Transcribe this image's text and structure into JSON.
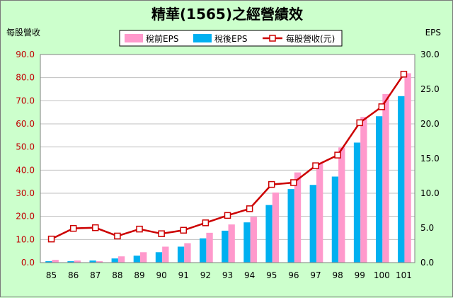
{
  "chart_data": {
    "type": "bar",
    "title": "精華(1565)之經營績效",
    "ylabel_left": "每股營收",
    "ylabel_right": "EPS",
    "categories": [
      "85",
      "86",
      "87",
      "88",
      "89",
      "90",
      "91",
      "92",
      "93",
      "94",
      "95",
      "96",
      "97",
      "98",
      "99",
      "100",
      "101"
    ],
    "series": [
      {
        "name": "稅前EPS",
        "type": "bar",
        "axis": "right",
        "color": "#ff99cc",
        "values": [
          0.4,
          0.3,
          0.2,
          0.9,
          1.5,
          2.3,
          2.8,
          4.3,
          5.5,
          6.6,
          10.1,
          13.0,
          14.3,
          16.6,
          21.0,
          24.3,
          27.3
        ]
      },
      {
        "name": "稅後EPS",
        "type": "bar",
        "axis": "right",
        "color": "#00b0f0",
        "values": [
          0.2,
          0.2,
          0.3,
          0.6,
          1.0,
          1.5,
          2.3,
          3.5,
          4.6,
          5.8,
          8.3,
          10.6,
          11.2,
          12.4,
          17.3,
          21.1,
          24.0
        ]
      },
      {
        "name": "每股營收(元)",
        "type": "line",
        "axis": "left",
        "color": "#cc0000",
        "values": [
          10.2,
          14.8,
          15.1,
          11.5,
          14.5,
          12.5,
          14.0,
          17.2,
          20.4,
          23.3,
          33.8,
          34.6,
          41.9,
          46.5,
          60.5,
          67.4,
          81.5
        ]
      }
    ],
    "ylim_left": [
      0,
      90
    ],
    "ylim_right": [
      0,
      30
    ],
    "yticks_left": [
      "0.0",
      "10.0",
      "20.0",
      "30.0",
      "40.0",
      "50.0",
      "60.0",
      "70.0",
      "80.0",
      "90.0"
    ],
    "yticks_right": [
      "0.0",
      "5.0",
      "10.0",
      "15.0",
      "20.0",
      "25.0",
      "30.0"
    ],
    "grid": true,
    "legend_position": "top-center"
  }
}
